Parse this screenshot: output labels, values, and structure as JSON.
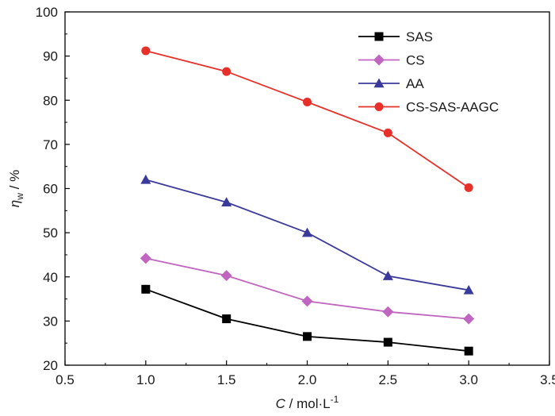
{
  "chart_data": {
    "type": "line",
    "title": "",
    "x": [
      1.0,
      1.5,
      2.0,
      2.5,
      3.0
    ],
    "xlim": [
      0.5,
      3.5
    ],
    "ylim": [
      20,
      100
    ],
    "xticks": [
      0.5,
      1.0,
      1.5,
      2.0,
      2.5,
      3.0,
      3.5
    ],
    "xtick_labels": [
      "0.5",
      "1.0",
      "1.5",
      "2.0",
      "2.5",
      "3.0",
      "3.5"
    ],
    "yticks": [
      20,
      30,
      40,
      50,
      60,
      70,
      80,
      90,
      100
    ],
    "ytick_labels": [
      "20",
      "30",
      "40",
      "50",
      "60",
      "70",
      "80",
      "90",
      "100"
    ],
    "xlabel": {
      "symbol": "C",
      "rest": " / mol·L",
      "sup": "-1"
    },
    "ylabel": {
      "symbol": "η",
      "sub": "w",
      "rest": " / %"
    },
    "grid": false,
    "legend_position": "top-right",
    "series": [
      {
        "name": "SAS",
        "marker": "square",
        "color": "#000000",
        "values": [
          37.2,
          30.5,
          26.5,
          25.2,
          23.2
        ]
      },
      {
        "name": "CS",
        "marker": "diamond",
        "color": "#c065c0",
        "values": [
          44.2,
          40.3,
          34.5,
          32.1,
          30.5
        ]
      },
      {
        "name": "AA",
        "marker": "triangle",
        "color": "#3a3a9a",
        "values": [
          62.0,
          56.9,
          50.0,
          40.2,
          37.0
        ]
      },
      {
        "name": "CS-SAS-AAGC",
        "marker": "circle",
        "color": "#e8302a",
        "values": [
          91.2,
          86.5,
          79.6,
          72.6,
          60.2
        ]
      }
    ]
  }
}
